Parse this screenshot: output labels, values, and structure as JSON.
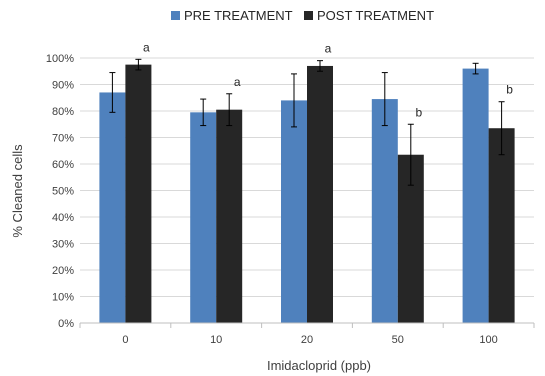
{
  "chart_data": {
    "type": "bar",
    "xlabel": "Imidacloprid (ppb)",
    "ylabel": "% Cleaned cells",
    "categories": [
      "0",
      "10",
      "20",
      "50",
      "100"
    ],
    "ylim": [
      0,
      100
    ],
    "yticks": [
      0,
      10,
      20,
      30,
      40,
      50,
      60,
      70,
      80,
      90,
      100
    ],
    "ytick_suffix": "%",
    "grid": "horizontal",
    "legend_position": "top",
    "series": [
      {
        "name": "PRE TREATMENT",
        "color": "#4f81bd",
        "values": [
          87,
          79.5,
          84,
          84.5,
          96
        ],
        "errors": [
          7.5,
          5,
          10,
          10,
          2
        ]
      },
      {
        "name": "POST TREATMENT",
        "color": "#262626",
        "values": [
          97.5,
          80.5,
          97,
          63.5,
          73.5
        ],
        "errors": [
          2,
          6,
          2,
          11.5,
          10
        ],
        "annotations": [
          "a",
          "a",
          "a",
          "b",
          "b"
        ]
      }
    ]
  }
}
